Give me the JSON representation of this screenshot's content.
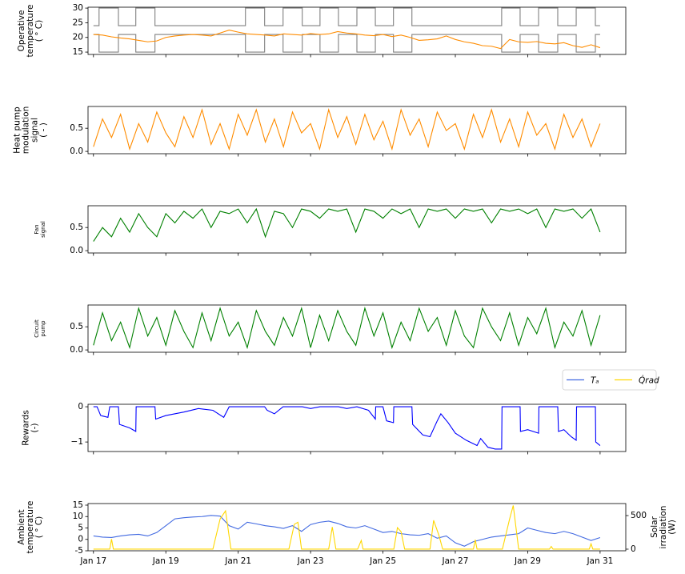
{
  "chart_data": [
    {
      "type": "line",
      "ylabel": [
        "Operative",
        "temperature",
        "( ° C)"
      ],
      "xlim": [
        16.85,
        31.71
      ],
      "ylim": [
        14.2,
        30.3
      ],
      "xticks": [
        17,
        19,
        21,
        23,
        25,
        27,
        29,
        31
      ],
      "xtick_labels": false,
      "yticks": [
        15,
        20,
        25,
        30
      ],
      "x": [
        17,
        17.25,
        17.5,
        17.75,
        18,
        18.25,
        18.5,
        18.75,
        19,
        19.25,
        19.5,
        19.75,
        20,
        20.25,
        20.5,
        20.75,
        21,
        21.25,
        21.5,
        21.75,
        22,
        22.25,
        22.5,
        22.75,
        23,
        23.25,
        23.5,
        23.75,
        24,
        24.25,
        24.5,
        24.75,
        25,
        25.25,
        25.5,
        25.75,
        26,
        26.25,
        26.5,
        26.75,
        27,
        27.25,
        27.5,
        27.75,
        28,
        28.25,
        28.5,
        28.75,
        29,
        29.25,
        29.5,
        29.75,
        30,
        30.25,
        30.5,
        30.75,
        31
      ],
      "series": [
        {
          "color": "#808080",
          "drawstyle": "steps-post",
          "x": [
            17,
            17.155,
            17.69,
            18.17,
            18.7,
            21.2,
            21.73,
            22.24,
            22.77,
            23.26,
            23.77,
            24.28,
            24.79,
            25.29,
            25.8,
            28.28,
            28.79,
            29.3,
            29.83,
            30.34,
            30.87,
            31
          ],
          "values": [
            24,
            30,
            24,
            30,
            24,
            30,
            24,
            30,
            24,
            30,
            24,
            30,
            24,
            30,
            24,
            30,
            24,
            30,
            24,
            30,
            24,
            24
          ]
        },
        {
          "color": "#808080",
          "drawstyle": "steps-post",
          "x": [
            17,
            17.155,
            17.69,
            18.17,
            18.7,
            21.2,
            21.73,
            22.24,
            22.77,
            23.26,
            23.77,
            24.28,
            24.79,
            25.29,
            25.8,
            28.28,
            28.79,
            29.3,
            29.83,
            30.34,
            30.87,
            31
          ],
          "values": [
            21,
            15,
            21,
            15,
            21,
            15,
            21,
            15,
            21,
            15,
            21,
            15,
            21,
            15,
            21,
            15,
            21,
            15,
            21,
            15,
            21,
            21
          ]
        },
        {
          "color": "#ff8c00",
          "values": [
            21,
            20.8,
            20.2,
            19.8,
            19.5,
            19,
            18.5,
            18.8,
            20,
            20.5,
            20.8,
            21,
            20.8,
            20.5,
            21.5,
            22.5,
            21.8,
            21.2,
            21,
            20.8,
            20.5,
            21.2,
            21,
            20.8,
            21.3,
            21,
            21.2,
            22,
            21.5,
            21.2,
            20.8,
            20.6,
            21,
            20.3,
            20.8,
            20,
            19,
            19.2,
            19.5,
            20.5,
            19.3,
            18.5,
            18,
            17.2,
            17,
            16.2,
            19.3,
            18.5,
            18.3,
            18.6,
            18,
            17.8,
            18.2,
            17.2,
            16.6,
            17.5,
            16.5
          ]
        }
      ]
    },
    {
      "type": "line",
      "ylabel": [
        "Heat pump",
        "modulation",
        "signal",
        "( - )"
      ],
      "xlim": [
        16.85,
        31.71
      ],
      "ylim": [
        -0.05,
        0.97
      ],
      "xticks": [
        17,
        19,
        21,
        23,
        25,
        27,
        29,
        31
      ],
      "xtick_labels": false,
      "yticks": [
        {
          "value": 0,
          "label": "0.0"
        },
        {
          "value": 0.5,
          "label": "0.5"
        }
      ],
      "x": [
        17,
        17.25,
        17.5,
        17.75,
        18,
        18.25,
        18.5,
        18.75,
        19,
        19.25,
        19.5,
        19.75,
        20,
        20.25,
        20.5,
        20.75,
        21,
        21.25,
        21.5,
        21.75,
        22,
        22.25,
        22.5,
        22.75,
        23,
        23.25,
        23.5,
        23.75,
        24,
        24.25,
        24.5,
        24.75,
        25,
        25.25,
        25.5,
        25.75,
        26,
        26.25,
        26.5,
        26.75,
        27,
        27.25,
        27.5,
        27.75,
        28,
        28.25,
        28.5,
        28.75,
        29,
        29.25,
        29.5,
        29.75,
        30,
        30.25,
        30.5,
        30.75,
        31
      ],
      "series": [
        {
          "color": "#ff8c00",
          "values": [
            0.1,
            0.7,
            0.3,
            0.8,
            0.05,
            0.6,
            0.2,
            0.85,
            0.4,
            0.1,
            0.75,
            0.3,
            0.9,
            0.15,
            0.6,
            0.05,
            0.8,
            0.35,
            0.9,
            0.2,
            0.7,
            0.1,
            0.85,
            0.4,
            0.6,
            0.05,
            0.9,
            0.3,
            0.75,
            0.15,
            0.8,
            0.25,
            0.65,
            0.05,
            0.9,
            0.35,
            0.7,
            0.1,
            0.85,
            0.45,
            0.6,
            0.05,
            0.8,
            0.3,
            0.9,
            0.2,
            0.7,
            0.1,
            0.85,
            0.35,
            0.6,
            0.05,
            0.8,
            0.3,
            0.7,
            0.1,
            0.6
          ]
        }
      ]
    },
    {
      "type": "line",
      "ylabel": [
        "Fan",
        "signal"
      ],
      "ylabel_small": true,
      "xlim": [
        16.85,
        31.71
      ],
      "ylim": [
        -0.05,
        0.97
      ],
      "xticks": [
        17,
        19,
        21,
        23,
        25,
        27,
        29,
        31
      ],
      "xtick_labels": false,
      "yticks": [
        {
          "value": 0,
          "label": "0.0"
        },
        {
          "value": 0.5,
          "label": "0.5"
        }
      ],
      "x": [
        17,
        17.25,
        17.5,
        17.75,
        18,
        18.25,
        18.5,
        18.75,
        19,
        19.25,
        19.5,
        19.75,
        20,
        20.25,
        20.5,
        20.75,
        21,
        21.25,
        21.5,
        21.75,
        22,
        22.25,
        22.5,
        22.75,
        23,
        23.25,
        23.5,
        23.75,
        24,
        24.25,
        24.5,
        24.75,
        25,
        25.25,
        25.5,
        25.75,
        26,
        26.25,
        26.5,
        26.75,
        27,
        27.25,
        27.5,
        27.75,
        28,
        28.25,
        28.5,
        28.75,
        29,
        29.25,
        29.5,
        29.75,
        30,
        30.25,
        30.5,
        30.75,
        31
      ],
      "series": [
        {
          "color": "#008000",
          "values": [
            0.2,
            0.5,
            0.3,
            0.7,
            0.4,
            0.8,
            0.5,
            0.3,
            0.8,
            0.6,
            0.85,
            0.7,
            0.9,
            0.5,
            0.85,
            0.8,
            0.9,
            0.6,
            0.9,
            0.3,
            0.85,
            0.8,
            0.5,
            0.9,
            0.85,
            0.7,
            0.9,
            0.85,
            0.9,
            0.4,
            0.9,
            0.85,
            0.7,
            0.9,
            0.8,
            0.9,
            0.5,
            0.9,
            0.85,
            0.9,
            0.7,
            0.9,
            0.85,
            0.9,
            0.6,
            0.9,
            0.85,
            0.9,
            0.8,
            0.9,
            0.5,
            0.9,
            0.85,
            0.9,
            0.7,
            0.9,
            0.4
          ]
        }
      ]
    },
    {
      "type": "line",
      "ylabel": [
        "Circuit",
        "pump"
      ],
      "ylabel_small": true,
      "xlim": [
        16.85,
        31.71
      ],
      "ylim": [
        -0.05,
        0.97
      ],
      "xticks": [
        17,
        19,
        21,
        23,
        25,
        27,
        29,
        31
      ],
      "xtick_labels": false,
      "yticks": [
        {
          "value": 0,
          "label": "0.0"
        },
        {
          "value": 0.5,
          "label": "0.5"
        }
      ],
      "x": [
        17,
        17.25,
        17.5,
        17.75,
        18,
        18.25,
        18.5,
        18.75,
        19,
        19.25,
        19.5,
        19.75,
        20,
        20.25,
        20.5,
        20.75,
        21,
        21.25,
        21.5,
        21.75,
        22,
        22.25,
        22.5,
        22.75,
        23,
        23.25,
        23.5,
        23.75,
        24,
        24.25,
        24.5,
        24.75,
        25,
        25.25,
        25.5,
        25.75,
        26,
        26.25,
        26.5,
        26.75,
        27,
        27.25,
        27.5,
        27.75,
        28,
        28.25,
        28.5,
        28.75,
        29,
        29.25,
        29.5,
        29.75,
        30,
        30.25,
        30.5,
        30.75,
        31
      ],
      "series": [
        {
          "color": "#008000",
          "values": [
            0.1,
            0.8,
            0.2,
            0.6,
            0.05,
            0.9,
            0.3,
            0.7,
            0.1,
            0.85,
            0.4,
            0.05,
            0.8,
            0.2,
            0.9,
            0.3,
            0.6,
            0.05,
            0.85,
            0.4,
            0.1,
            0.7,
            0.3,
            0.9,
            0.05,
            0.75,
            0.2,
            0.85,
            0.4,
            0.1,
            0.9,
            0.3,
            0.8,
            0.05,
            0.6,
            0.2,
            0.9,
            0.4,
            0.7,
            0.1,
            0.85,
            0.3,
            0.05,
            0.9,
            0.5,
            0.2,
            0.8,
            0.1,
            0.7,
            0.35,
            0.9,
            0.05,
            0.6,
            0.3,
            0.85,
            0.1,
            0.75
          ]
        }
      ]
    },
    {
      "type": "line",
      "ylabel": [
        "Rewards",
        "(-)"
      ],
      "xlim": [
        16.85,
        31.71
      ],
      "ylim": [
        -1.27,
        0.07
      ],
      "xticks": [
        17,
        19,
        21,
        23,
        25,
        27,
        29,
        31
      ],
      "xtick_labels": false,
      "yticks": [
        {
          "value": -1,
          "label": "−1"
        },
        0
      ],
      "series": [
        {
          "color": "#0000ff",
          "x": [
            17,
            17.1,
            17.2,
            17.4,
            17.45,
            17.69,
            17.72,
            18,
            18.17,
            18.18,
            18.7,
            18.72,
            19,
            19.5,
            19.9,
            20.3,
            20.6,
            20.75,
            21.2,
            21.5,
            21.73,
            21.8,
            22,
            22.24,
            22.77,
            23,
            23.26,
            23.77,
            24,
            24.28,
            24.6,
            24.79,
            24.8,
            25,
            25.1,
            25.29,
            25.3,
            25.8,
            25.82,
            26.1,
            26.3,
            26.5,
            26.6,
            26.8,
            27,
            27.3,
            27.6,
            27.7,
            27.9,
            28.1,
            28.28,
            28.29,
            28.79,
            28.8,
            29,
            29.3,
            29.31,
            29.83,
            29.85,
            30,
            30.2,
            30.34,
            30.35,
            30.87,
            30.88,
            31
          ],
          "values": [
            0,
            0,
            -0.25,
            -0.3,
            0,
            0,
            -0.5,
            -0.6,
            -0.7,
            0,
            0,
            -0.35,
            -0.25,
            -0.15,
            -0.05,
            -0.1,
            -0.3,
            0,
            0,
            0,
            0,
            -0.1,
            -0.2,
            0,
            0,
            -0.05,
            0,
            0,
            -0.05,
            0,
            -0.1,
            -0.35,
            0,
            0,
            -0.4,
            -0.45,
            0,
            0,
            -0.5,
            -0.8,
            -0.85,
            -0.4,
            -0.2,
            -0.45,
            -0.75,
            -0.95,
            -1.1,
            -0.9,
            -1.15,
            -1.2,
            -1.2,
            0,
            0,
            -0.7,
            -0.65,
            -0.75,
            0,
            0,
            -0.7,
            -0.65,
            -0.85,
            -0.95,
            0,
            0,
            -1.0,
            -1.1
          ]
        }
      ]
    },
    {
      "type": "line",
      "ylabel": [
        "Ambient",
        "temperature",
        "( ° C)"
      ],
      "y2label": [
        "Solar",
        "irradiation",
        "(W)"
      ],
      "xlim": [
        16.85,
        31.71
      ],
      "ylim": [
        -5,
        15.7
      ],
      "y2lim": [
        -24,
        679
      ],
      "xticks": [
        {
          "value": 17,
          "label": "Jan 17"
        },
        {
          "value": 19,
          "label": "Jan 19"
        },
        {
          "value": 21,
          "label": "Jan 21"
        },
        {
          "value": 23,
          "label": "Jan 23"
        },
        {
          "value": 25,
          "label": "Jan 25"
        },
        {
          "value": 27,
          "label": "Jan 27"
        },
        {
          "value": 29,
          "label": "Jan 29"
        },
        {
          "value": 31,
          "label": "Jan 31"
        }
      ],
      "yticks": [
        -5,
        0,
        5,
        10,
        15
      ],
      "y2ticks": [
        0,
        500
      ],
      "legend": "above right",
      "x": [
        17,
        17.25,
        17.5,
        17.75,
        18,
        18.25,
        18.5,
        18.75,
        19,
        19.25,
        19.5,
        19.75,
        20,
        20.25,
        20.5,
        20.75,
        21,
        21.25,
        21.5,
        21.75,
        22,
        22.25,
        22.5,
        22.75,
        23,
        23.25,
        23.5,
        23.75,
        24,
        24.25,
        24.5,
        24.75,
        25,
        25.25,
        25.5,
        25.75,
        26,
        26.25,
        26.5,
        26.75,
        27,
        27.25,
        27.5,
        27.75,
        28,
        28.25,
        28.5,
        28.75,
        29,
        29.25,
        29.5,
        29.75,
        30,
        30.25,
        30.5,
        30.75,
        31
      ],
      "series": [
        {
          "name": "Tₐ",
          "color": "#4169e1",
          "values": [
            1.5,
            1.0,
            0.8,
            1.5,
            2.0,
            2.2,
            1.5,
            3.0,
            6.0,
            9.0,
            9.5,
            9.8,
            10.0,
            10.5,
            10.2,
            6.0,
            4.5,
            7.5,
            6.8,
            6.0,
            5.5,
            4.8,
            6.0,
            3.5,
            6.5,
            7.5,
            8.0,
            7.0,
            5.5,
            5.0,
            6.0,
            4.5,
            3.0,
            3.5,
            2.5,
            2.0,
            1.8,
            2.5,
            0.5,
            1.5,
            -1.5,
            -3.0,
            -1.0,
            0.0,
            1.0,
            1.5,
            2.0,
            2.5,
            5.0,
            4.0,
            3.0,
            2.5,
            3.5,
            2.5,
            1.0,
            -0.5,
            0.8
          ]
        },
        {
          "name": "Q̇rad",
          "color": "#ffd700",
          "axis": "y2",
          "x": [
            17,
            17.45,
            17.5,
            17.55,
            20.3,
            20.5,
            20.65,
            20.8,
            22.4,
            22.55,
            22.65,
            22.75,
            23.5,
            23.6,
            23.7,
            24.3,
            24.4,
            24.45,
            25.3,
            25.4,
            25.5,
            25.6,
            26.3,
            26.4,
            26.55,
            26.65,
            27.5,
            27.55,
            27.6,
            28.3,
            28.5,
            28.6,
            28.75,
            29.6,
            29.65,
            29.7,
            30.7,
            30.75,
            30.8,
            31
          ],
          "values": [
            0,
            0,
            150,
            0,
            0,
            450,
            570,
            0,
            0,
            370,
            400,
            0,
            0,
            330,
            0,
            0,
            130,
            0,
            0,
            320,
            260,
            0,
            0,
            430,
            200,
            0,
            0,
            140,
            0,
            0,
            450,
            650,
            0,
            0,
            40,
            0,
            0,
            80,
            0,
            0
          ]
        }
      ]
    }
  ]
}
